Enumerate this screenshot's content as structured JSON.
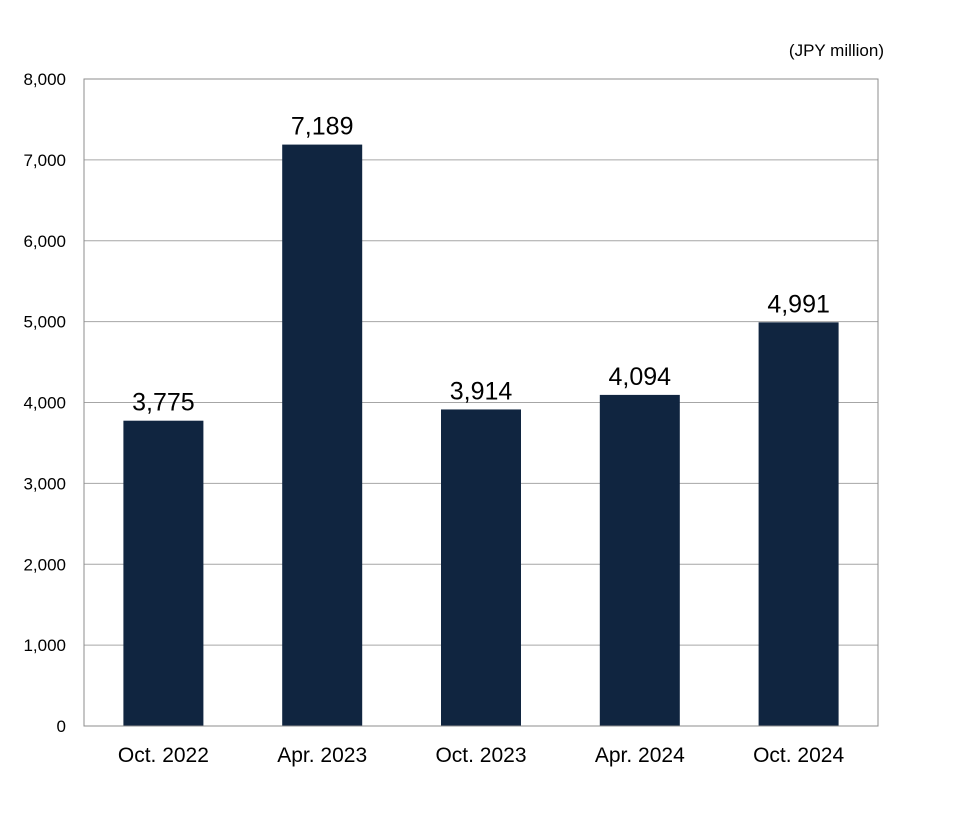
{
  "chart_data": {
    "type": "bar",
    "unit": "(JPY million)",
    "categories": [
      "Oct. 2022",
      "Apr. 2023",
      "Oct. 2023",
      "Apr. 2024",
      "Oct. 2024"
    ],
    "values": [
      3775,
      7189,
      3914,
      4094,
      4991
    ],
    "data_labels": [
      "3,775",
      "7,189",
      "3,914",
      "4,094",
      "4,991"
    ],
    "ylim": [
      0,
      8000
    ],
    "yticks": [
      0,
      1000,
      2000,
      3000,
      4000,
      5000,
      6000,
      7000,
      8000
    ],
    "ytick_labels": [
      "0",
      "1,000",
      "2,000",
      "3,000",
      "4,000",
      "5,000",
      "6,000",
      "7,000",
      "8,000"
    ],
    "grid": true,
    "legend": "none",
    "bar_color": "#102540",
    "grid_color": "#a6a6a6",
    "frame_color": "#8c8c8c"
  }
}
